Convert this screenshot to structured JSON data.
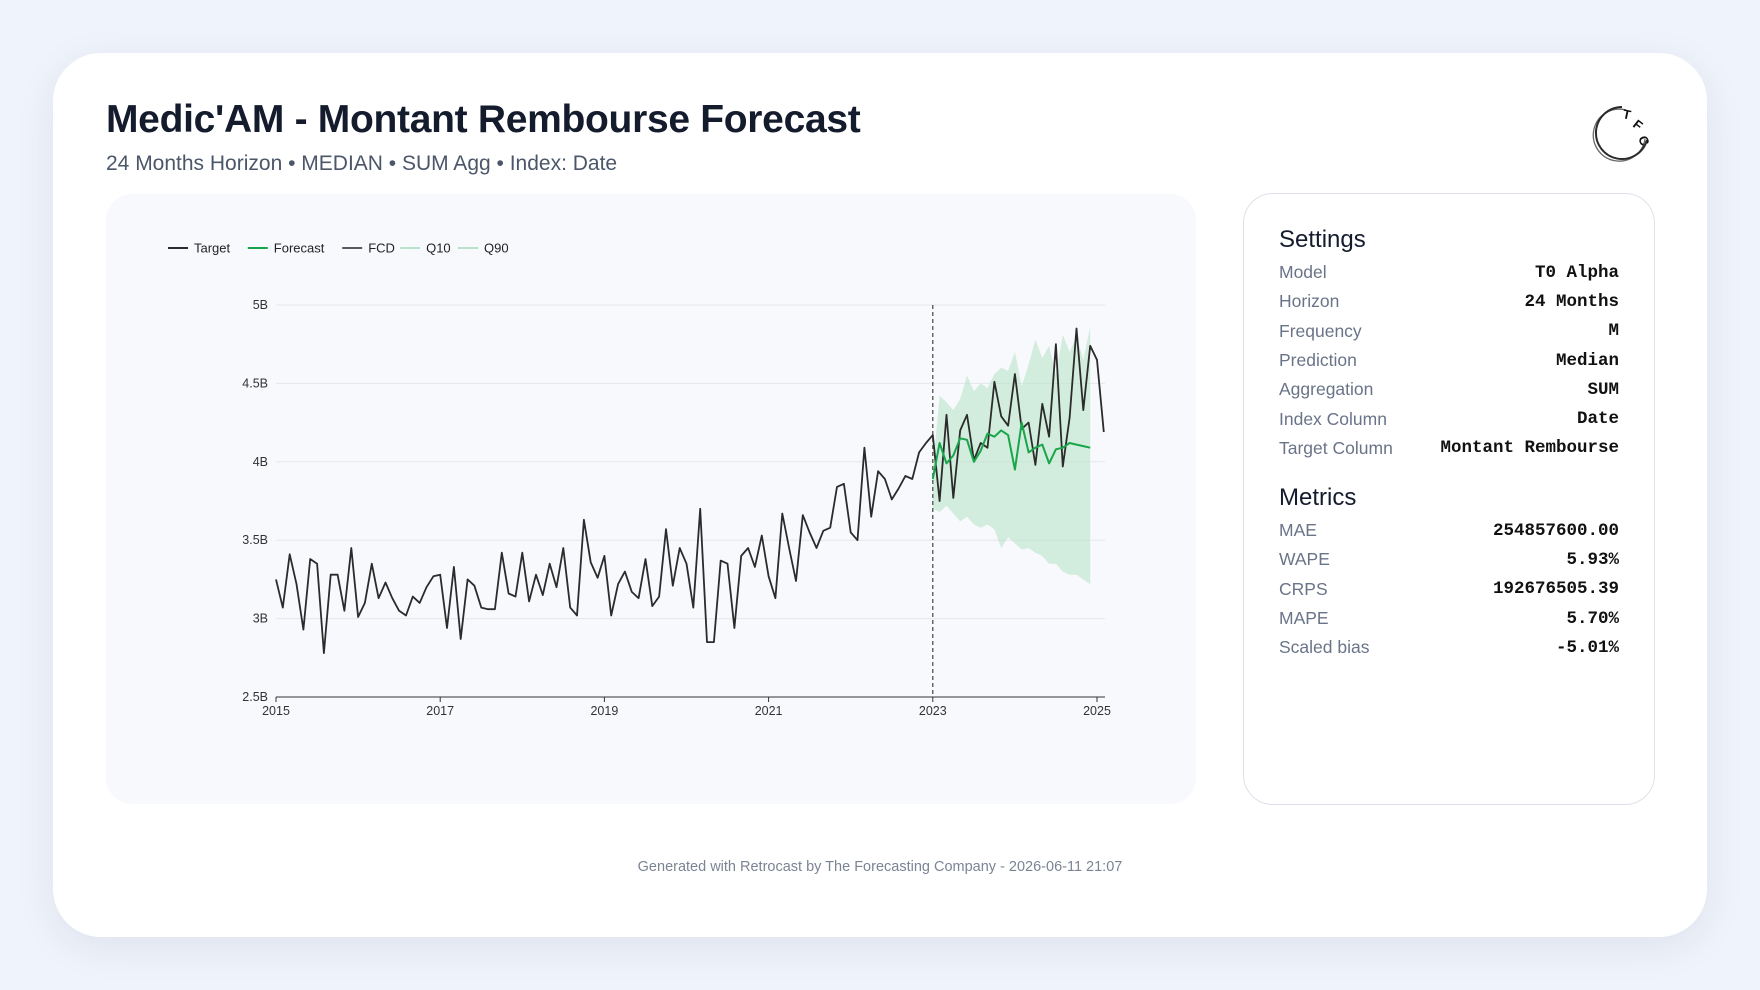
{
  "header": {
    "title": "Medic'AM - Montant Rembourse Forecast",
    "subtitle": "24 Months Horizon • MEDIAN • SUM Agg • Index: Date",
    "logo_text": "TFC"
  },
  "settings": {
    "heading": "Settings",
    "rows": [
      {
        "label": "Model",
        "value": "T0 Alpha"
      },
      {
        "label": "Horizon",
        "value": "24 Months"
      },
      {
        "label": "Frequency",
        "value": "M"
      },
      {
        "label": "Prediction",
        "value": "Median"
      },
      {
        "label": "Aggregation",
        "value": "SUM"
      },
      {
        "label": "Index Column",
        "value": "Date"
      },
      {
        "label": "Target Column",
        "value": "Montant Rembourse"
      }
    ]
  },
  "metrics": {
    "heading": "Metrics",
    "rows": [
      {
        "label": "MAE",
        "value": "254857600.00"
      },
      {
        "label": "WAPE",
        "value": "5.93%"
      },
      {
        "label": "CRPS",
        "value": "192676505.39"
      },
      {
        "label": "MAPE",
        "value": "5.70%"
      },
      {
        "label": "Scaled bias",
        "value": "-5.01%"
      }
    ]
  },
  "footer": {
    "text": "Generated with Retrocast by The Forecasting Company - 2026-06-11 21:07"
  },
  "colors": {
    "target": "#2b2b2b",
    "forecast": "#19a64a",
    "fcd": "#5a5a5a",
    "band": "#b9e3c8",
    "q_line": "#b9e3c8",
    "grid": "#e4e7ec"
  },
  "chart_data": {
    "type": "line",
    "x_axis_type": "time",
    "x_start": "2015-01",
    "x_tick_labels": [
      "2015",
      "2017",
      "2019",
      "2021",
      "2023",
      "2025"
    ],
    "y_tick_labels": [
      "2.5B",
      "3B",
      "3.5B",
      "4B",
      "4.5B",
      "5B"
    ],
    "y_ticks": [
      2.5,
      3,
      3.5,
      4,
      4.5,
      5
    ],
    "ylim": [
      2.5,
      5
    ],
    "y_unit": "B",
    "grid": true,
    "legend_position": "top-left",
    "legend": [
      "Target",
      "Forecast",
      "FCD",
      "Q10",
      "Q90"
    ],
    "forecast_cutoff": "2023-01",
    "series": [
      {
        "name": "Target",
        "start": "2015-01",
        "values": [
          3.25,
          3.07,
          3.41,
          3.22,
          2.93,
          3.38,
          3.35,
          2.78,
          3.28,
          3.28,
          3.05,
          3.45,
          3.01,
          3.1,
          3.35,
          3.13,
          3.23,
          3.13,
          3.05,
          3.02,
          3.14,
          3.1,
          3.2,
          3.27,
          3.28,
          2.94,
          3.33,
          2.87,
          3.25,
          3.21,
          3.07,
          3.06,
          3.06,
          3.42,
          3.16,
          3.14,
          3.42,
          3.11,
          3.28,
          3.15,
          3.35,
          3.2,
          3.45,
          3.07,
          3.02,
          3.63,
          3.36,
          3.26,
          3.4,
          3.02,
          3.22,
          3.3,
          3.17,
          3.13,
          3.38,
          3.08,
          3.14,
          3.57,
          3.21,
          3.45,
          3.35,
          3.07,
          3.7,
          2.85,
          2.85,
          3.37,
          3.35,
          2.94,
          3.4,
          3.45,
          3.33,
          3.53,
          3.27,
          3.13,
          3.67,
          3.45,
          3.24,
          3.66,
          3.55,
          3.45,
          3.56,
          3.58,
          3.84,
          3.86,
          3.55,
          3.5,
          4.09,
          3.65,
          3.94,
          3.89,
          3.76,
          3.83,
          3.91,
          3.89,
          4.06,
          4.12,
          4.17,
          3.75,
          4.3,
          3.77,
          4.2,
          4.3,
          4.01,
          4.12,
          4.09,
          4.51,
          4.29,
          4.23,
          4.56,
          4.21,
          4.25,
          3.98,
          4.37,
          4.16,
          4.75,
          3.97,
          4.28,
          4.85,
          4.33,
          4.74,
          4.65,
          4.19
        ]
      },
      {
        "name": "Forecast",
        "start": "2023-01",
        "values": [
          3.89,
          4.12,
          3.99,
          4.04,
          4.15,
          4.14,
          4.0,
          4.07,
          4.18,
          4.16,
          4.2,
          4.17,
          3.95,
          4.25,
          4.06,
          4.09,
          4.11,
          3.99,
          4.08,
          4.09,
          4.12,
          4.11,
          4.1,
          4.09
        ]
      },
      {
        "name": "FCD",
        "start": "2023-01",
        "values": [
          4.17
        ]
      },
      {
        "name": "Q10",
        "start": "2023-01",
        "values": [
          3.7,
          3.68,
          3.72,
          3.67,
          3.62,
          3.65,
          3.6,
          3.58,
          3.6,
          3.57,
          3.45,
          3.52,
          3.48,
          3.44,
          3.45,
          3.42,
          3.4,
          3.35,
          3.35,
          3.3,
          3.28,
          3.28,
          3.25,
          3.22
        ]
      },
      {
        "name": "Q90",
        "start": "2023-01",
        "values": [
          3.95,
          4.42,
          4.38,
          4.33,
          4.4,
          4.55,
          4.45,
          4.5,
          4.47,
          4.56,
          4.6,
          4.58,
          4.7,
          4.48,
          4.62,
          4.78,
          4.66,
          4.74,
          4.55,
          4.81,
          4.7,
          4.8,
          4.65,
          4.86
        ]
      }
    ]
  }
}
